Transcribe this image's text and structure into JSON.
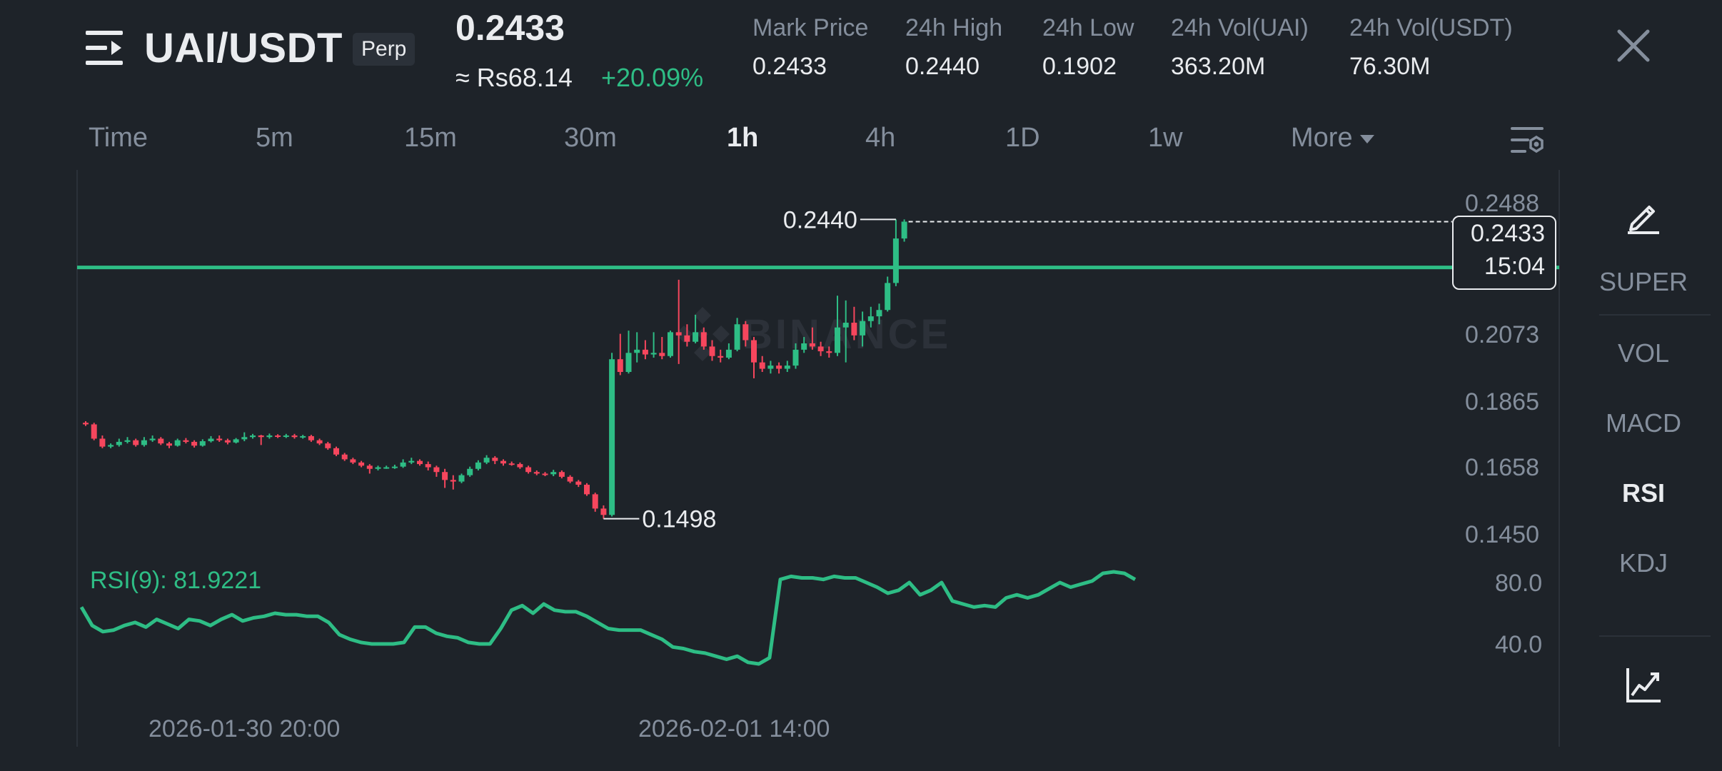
{
  "header": {
    "pair": "UAI/USDT",
    "contract_type": "Perp",
    "last_price": "0.2433",
    "fiat_price": "≈ Rs68.14",
    "change_pct": "+20.09%",
    "stats": [
      {
        "label": "Mark Price",
        "value": "0.2433"
      },
      {
        "label": "24h High",
        "value": "0.2440"
      },
      {
        "label": "24h Low",
        "value": "0.1902"
      },
      {
        "label": "24h Vol(UAI)",
        "value": "363.20M"
      },
      {
        "label": "24h Vol(USDT)",
        "value": "76.30M"
      }
    ]
  },
  "timeframes": [
    "Time",
    "5m",
    "15m",
    "30m",
    "1h",
    "4h",
    "1D",
    "1w",
    "More"
  ],
  "active_timeframe": "1h",
  "sidebar": {
    "items": [
      "SUPER",
      "VOL",
      "MACD",
      "RSI",
      "KDJ"
    ],
    "active": "RSI"
  },
  "watermark": "BINANCE",
  "chart": {
    "current_price": "0.2433",
    "countdown": "15:04",
    "high_marker": "0.2440",
    "low_marker": "0.1498",
    "price_ticks": [
      "0.2488",
      "0.2073",
      "0.1865",
      "0.1658",
      "0.1450"
    ],
    "rsi_label": "RSI(9): 81.9221",
    "rsi_ticks": [
      "80.0",
      "40.0"
    ],
    "date_labels": [
      "2026-01-30 20:00",
      "2026-02-01 14:00"
    ]
  },
  "chart_data": {
    "type": "candlestick",
    "interval": "1h",
    "y_axis_ticks": [
      0.2488,
      0.2073,
      0.1865,
      0.1658,
      0.145
    ],
    "horizontal_line": 0.2289,
    "candles": [
      {
        "o": 0.18,
        "c": 0.1795,
        "h": 0.1805,
        "l": 0.179
      },
      {
        "o": 0.1795,
        "c": 0.175,
        "h": 0.18,
        "l": 0.1745
      },
      {
        "o": 0.175,
        "c": 0.1725,
        "h": 0.176,
        "l": 0.172
      },
      {
        "o": 0.1725,
        "c": 0.173,
        "h": 0.1735,
        "l": 0.172
      },
      {
        "o": 0.173,
        "c": 0.174,
        "h": 0.175,
        "l": 0.1725
      },
      {
        "o": 0.174,
        "c": 0.1745,
        "h": 0.1755,
        "l": 0.1735
      },
      {
        "o": 0.1745,
        "c": 0.173,
        "h": 0.175,
        "l": 0.1725
      },
      {
        "o": 0.173,
        "c": 0.1745,
        "h": 0.1755,
        "l": 0.1725
      },
      {
        "o": 0.1745,
        "c": 0.175,
        "h": 0.176,
        "l": 0.174
      },
      {
        "o": 0.175,
        "c": 0.1735,
        "h": 0.1755,
        "l": 0.173
      },
      {
        "o": 0.1735,
        "c": 0.1728,
        "h": 0.174,
        "l": 0.172
      },
      {
        "o": 0.1728,
        "c": 0.1745,
        "h": 0.175,
        "l": 0.1725
      },
      {
        "o": 0.1745,
        "c": 0.174,
        "h": 0.1752,
        "l": 0.1735
      },
      {
        "o": 0.174,
        "c": 0.1728,
        "h": 0.1745,
        "l": 0.1722
      },
      {
        "o": 0.1728,
        "c": 0.1742,
        "h": 0.1748,
        "l": 0.1725
      },
      {
        "o": 0.1742,
        "c": 0.175,
        "h": 0.1758,
        "l": 0.1738
      },
      {
        "o": 0.175,
        "c": 0.1745,
        "h": 0.176,
        "l": 0.174
      },
      {
        "o": 0.1745,
        "c": 0.1738,
        "h": 0.175,
        "l": 0.1732
      },
      {
        "o": 0.1738,
        "c": 0.1748,
        "h": 0.1752,
        "l": 0.1735
      },
      {
        "o": 0.1748,
        "c": 0.1755,
        "h": 0.177,
        "l": 0.1742
      },
      {
        "o": 0.1755,
        "c": 0.176,
        "h": 0.1765,
        "l": 0.175
      },
      {
        "o": 0.176,
        "c": 0.1755,
        "h": 0.1762,
        "l": 0.173
      },
      {
        "o": 0.1755,
        "c": 0.176,
        "h": 0.1766,
        "l": 0.175
      },
      {
        "o": 0.176,
        "c": 0.1758,
        "h": 0.1764,
        "l": 0.1752
      },
      {
        "o": 0.1758,
        "c": 0.176,
        "h": 0.1765,
        "l": 0.1752
      },
      {
        "o": 0.176,
        "c": 0.1755,
        "h": 0.1765,
        "l": 0.175
      },
      {
        "o": 0.1755,
        "c": 0.1758,
        "h": 0.1762,
        "l": 0.175
      },
      {
        "o": 0.1758,
        "c": 0.1745,
        "h": 0.1762,
        "l": 0.174
      },
      {
        "o": 0.1745,
        "c": 0.1735,
        "h": 0.175,
        "l": 0.173
      },
      {
        "o": 0.1735,
        "c": 0.172,
        "h": 0.174,
        "l": 0.1715
      },
      {
        "o": 0.172,
        "c": 0.17,
        "h": 0.1725,
        "l": 0.1695
      },
      {
        "o": 0.17,
        "c": 0.1685,
        "h": 0.1705,
        "l": 0.168
      },
      {
        "o": 0.1685,
        "c": 0.1675,
        "h": 0.169,
        "l": 0.167
      },
      {
        "o": 0.1675,
        "c": 0.1665,
        "h": 0.168,
        "l": 0.166
      },
      {
        "o": 0.1665,
        "c": 0.1655,
        "h": 0.167,
        "l": 0.164
      },
      {
        "o": 0.1655,
        "c": 0.166,
        "h": 0.1665,
        "l": 0.165
      },
      {
        "o": 0.166,
        "c": 0.166,
        "h": 0.1665,
        "l": 0.1655
      },
      {
        "o": 0.166,
        "c": 0.1662,
        "h": 0.1668,
        "l": 0.1655
      },
      {
        "o": 0.1662,
        "c": 0.1675,
        "h": 0.1685,
        "l": 0.1658
      },
      {
        "o": 0.1675,
        "c": 0.168,
        "h": 0.169,
        "l": 0.167
      },
      {
        "o": 0.168,
        "c": 0.167,
        "h": 0.1685,
        "l": 0.1665
      },
      {
        "o": 0.167,
        "c": 0.166,
        "h": 0.1678,
        "l": 0.165
      },
      {
        "o": 0.166,
        "c": 0.1645,
        "h": 0.1665,
        "l": 0.163
      },
      {
        "o": 0.1645,
        "c": 0.162,
        "h": 0.1655,
        "l": 0.1595
      },
      {
        "o": 0.162,
        "c": 0.1615,
        "h": 0.1635,
        "l": 0.159
      },
      {
        "o": 0.1615,
        "c": 0.1635,
        "h": 0.164,
        "l": 0.161
      },
      {
        "o": 0.1635,
        "c": 0.1655,
        "h": 0.1662,
        "l": 0.163
      },
      {
        "o": 0.1655,
        "c": 0.1675,
        "h": 0.1682,
        "l": 0.165
      },
      {
        "o": 0.1675,
        "c": 0.169,
        "h": 0.1698,
        "l": 0.167
      },
      {
        "o": 0.169,
        "c": 0.168,
        "h": 0.1695,
        "l": 0.167
      },
      {
        "o": 0.168,
        "c": 0.1672,
        "h": 0.1685,
        "l": 0.1665
      },
      {
        "o": 0.1672,
        "c": 0.167,
        "h": 0.1678,
        "l": 0.1665
      },
      {
        "o": 0.167,
        "c": 0.166,
        "h": 0.1675,
        "l": 0.1655
      },
      {
        "o": 0.166,
        "c": 0.1645,
        "h": 0.1665,
        "l": 0.164
      },
      {
        "o": 0.1645,
        "c": 0.164,
        "h": 0.165,
        "l": 0.1635
      },
      {
        "o": 0.164,
        "c": 0.1638,
        "h": 0.1645,
        "l": 0.1632
      },
      {
        "o": 0.1638,
        "c": 0.1645,
        "h": 0.1652,
        "l": 0.1632
      },
      {
        "o": 0.1645,
        "c": 0.163,
        "h": 0.165,
        "l": 0.1625
      },
      {
        "o": 0.163,
        "c": 0.1615,
        "h": 0.1635,
        "l": 0.161
      },
      {
        "o": 0.1615,
        "c": 0.1605,
        "h": 0.162,
        "l": 0.1598
      },
      {
        "o": 0.1605,
        "c": 0.1575,
        "h": 0.161,
        "l": 0.157
      },
      {
        "o": 0.1575,
        "c": 0.153,
        "h": 0.158,
        "l": 0.152
      },
      {
        "o": 0.153,
        "c": 0.151,
        "h": 0.154,
        "l": 0.1498
      },
      {
        "o": 0.151,
        "c": 0.2,
        "h": 0.202,
        "l": 0.1505
      },
      {
        "o": 0.2,
        "c": 0.196,
        "h": 0.208,
        "l": 0.195
      },
      {
        "o": 0.196,
        "c": 0.202,
        "h": 0.209,
        "l": 0.1955
      },
      {
        "o": 0.202,
        "c": 0.203,
        "h": 0.2085,
        "l": 0.199
      },
      {
        "o": 0.203,
        "c": 0.2015,
        "h": 0.206,
        "l": 0.2
      },
      {
        "o": 0.2015,
        "c": 0.202,
        "h": 0.2085,
        "l": 0.2005
      },
      {
        "o": 0.202,
        "c": 0.201,
        "h": 0.207,
        "l": 0.2
      },
      {
        "o": 0.201,
        "c": 0.2085,
        "h": 0.209,
        "l": 0.2005
      },
      {
        "o": 0.2085,
        "c": 0.2075,
        "h": 0.225,
        "l": 0.1985
      },
      {
        "o": 0.2075,
        "c": 0.2055,
        "h": 0.211,
        "l": 0.204
      },
      {
        "o": 0.2055,
        "c": 0.2085,
        "h": 0.214,
        "l": 0.205
      },
      {
        "o": 0.2085,
        "c": 0.204,
        "h": 0.21,
        "l": 0.203
      },
      {
        "o": 0.204,
        "c": 0.201,
        "h": 0.206,
        "l": 0.1995
      },
      {
        "o": 0.201,
        "c": 0.2005,
        "h": 0.203,
        "l": 0.199
      },
      {
        "o": 0.2005,
        "c": 0.203,
        "h": 0.205,
        "l": 0.2
      },
      {
        "o": 0.203,
        "c": 0.211,
        "h": 0.213,
        "l": 0.2025
      },
      {
        "o": 0.211,
        "c": 0.206,
        "h": 0.212,
        "l": 0.204
      },
      {
        "o": 0.206,
        "c": 0.199,
        "h": 0.207,
        "l": 0.194
      },
      {
        "o": 0.199,
        "c": 0.197,
        "h": 0.201,
        "l": 0.196
      },
      {
        "o": 0.197,
        "c": 0.198,
        "h": 0.1995,
        "l": 0.1955
      },
      {
        "o": 0.198,
        "c": 0.197,
        "h": 0.199,
        "l": 0.1955
      },
      {
        "o": 0.197,
        "c": 0.198,
        "h": 0.1995,
        "l": 0.196
      },
      {
        "o": 0.198,
        "c": 0.203,
        "h": 0.205,
        "l": 0.197
      },
      {
        "o": 0.203,
        "c": 0.205,
        "h": 0.207,
        "l": 0.202
      },
      {
        "o": 0.205,
        "c": 0.204,
        "h": 0.21,
        "l": 0.203
      },
      {
        "o": 0.204,
        "c": 0.2025,
        "h": 0.2055,
        "l": 0.201
      },
      {
        "o": 0.2025,
        "c": 0.202,
        "h": 0.204,
        "l": 0.2005
      },
      {
        "o": 0.202,
        "c": 0.21,
        "h": 0.22,
        "l": 0.201
      },
      {
        "o": 0.21,
        "c": 0.2115,
        "h": 0.2185,
        "l": 0.199
      },
      {
        "o": 0.2115,
        "c": 0.2075,
        "h": 0.2165,
        "l": 0.206
      },
      {
        "o": 0.2075,
        "c": 0.212,
        "h": 0.215,
        "l": 0.204
      },
      {
        "o": 0.212,
        "c": 0.2135,
        "h": 0.2165,
        "l": 0.21
      },
      {
        "o": 0.2135,
        "c": 0.2155,
        "h": 0.2175,
        "l": 0.211
      },
      {
        "o": 0.2155,
        "c": 0.224,
        "h": 0.226,
        "l": 0.215
      },
      {
        "o": 0.224,
        "c": 0.238,
        "h": 0.244,
        "l": 0.223
      },
      {
        "o": 0.238,
        "c": 0.2433,
        "h": 0.244,
        "l": 0.237
      }
    ],
    "rsi": {
      "period": 9,
      "current": 81.9221,
      "y_axis_ticks": [
        80.0,
        40.0
      ],
      "values": [
        64,
        52,
        48,
        49,
        52,
        54,
        51,
        56,
        53,
        50,
        56,
        55,
        52,
        56,
        59,
        55,
        57,
        58,
        60,
        59,
        59,
        58,
        58,
        54,
        46,
        43,
        41,
        40,
        40,
        40,
        41,
        51,
        51,
        47,
        45,
        44,
        41,
        40,
        40,
        50,
        62,
        65,
        60,
        66,
        62,
        61,
        61,
        58,
        54,
        50,
        49,
        49,
        49,
        46,
        43,
        38,
        37,
        35,
        34,
        32,
        30,
        32,
        28,
        27,
        31,
        82,
        84,
        83,
        83,
        82,
        84,
        83,
        83,
        80,
        77,
        73,
        75,
        80,
        72,
        75,
        80,
        68,
        66,
        64,
        65,
        64,
        70,
        72,
        70,
        72,
        76,
        80,
        77,
        79,
        81,
        86,
        87,
        86,
        82
      ]
    }
  }
}
